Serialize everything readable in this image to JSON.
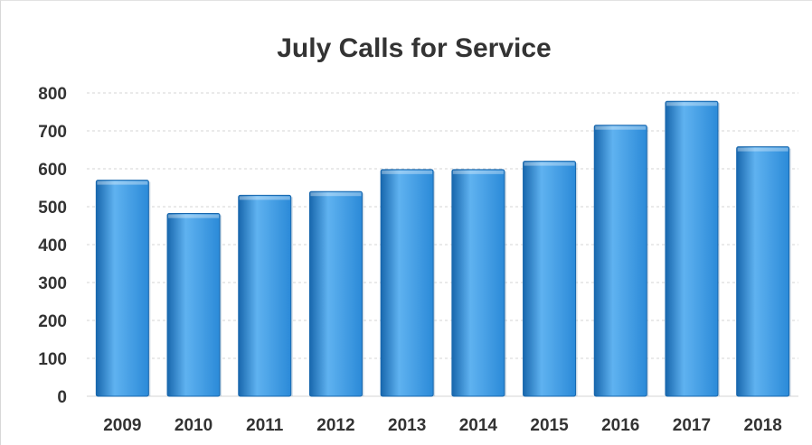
{
  "chart_data": {
    "type": "bar",
    "title": "July Calls for Service",
    "xlabel": "",
    "ylabel": "",
    "categories": [
      "2009",
      "2010",
      "2011",
      "2012",
      "2013",
      "2014",
      "2015",
      "2016",
      "2017",
      "2018"
    ],
    "values": [
      570,
      482,
      530,
      540,
      598,
      598,
      620,
      715,
      778,
      658
    ],
    "ylim": [
      0,
      800
    ],
    "yticks": [
      0,
      100,
      200,
      300,
      400,
      500,
      600,
      700,
      800
    ],
    "grid": true,
    "legend": "none",
    "colors": {
      "bar": "#2b8ad8",
      "bar_light": "#5fb2f0",
      "bar_dark": "#1867ad",
      "grid": "#d4d4d4",
      "text": "#333333"
    }
  }
}
